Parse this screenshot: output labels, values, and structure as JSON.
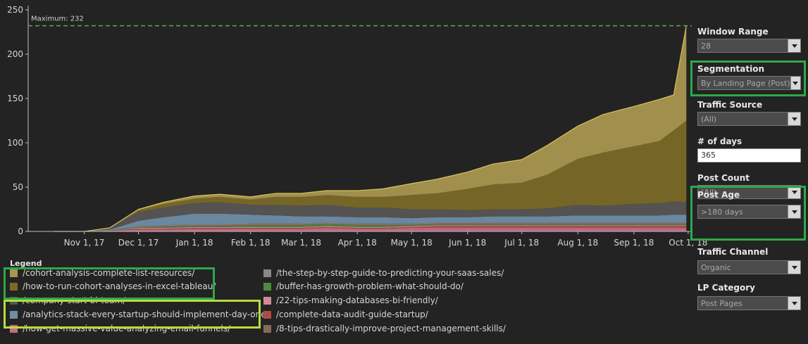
{
  "colors": {
    "background": "#232323",
    "reference_line": "#5da94e",
    "highlight_green": "#2ea84a",
    "highlight_lime": "#b7dc3c"
  },
  "chart_data": {
    "type": "area",
    "stacked": true,
    "title": "",
    "xlabel": "",
    "ylabel": "",
    "ylim": [
      0,
      250
    ],
    "xlim": [
      "2017-10-01",
      "2018-10-03"
    ],
    "yticks": [
      0,
      50,
      100,
      150,
      200,
      250
    ],
    "ytick_labels": [
      "0",
      "50",
      "100",
      "150",
      "200",
      "250"
    ],
    "xticks": [
      "2017-11-01",
      "2017-12-01",
      "2018-01-01",
      "2018-02-01",
      "2018-03-01",
      "2018-04-01",
      "2018-05-01",
      "2018-06-01",
      "2018-07-01",
      "2018-08-01",
      "2018-09-01",
      "2018-10-01"
    ],
    "xtick_labels": [
      "Nov 1, 17",
      "Dec 1, 17",
      "Jan 1, 18",
      "Feb 1, 18",
      "Mar 1, 18",
      "Apr 1, 18",
      "May 1, 18",
      "Jun 1, 18",
      "Jul 1, 18",
      "Aug 1, 18",
      "Sep 1, 18",
      "Oct 1, 18"
    ],
    "grid": false,
    "reference_line": {
      "value": 232,
      "label": "Maximum: 232"
    },
    "x": [
      "2017-10-15",
      "2017-11-01",
      "2017-11-15",
      "2017-12-01",
      "2017-12-15",
      "2018-01-01",
      "2018-01-15",
      "2018-02-01",
      "2018-02-15",
      "2018-03-01",
      "2018-03-15",
      "2018-04-01",
      "2018-04-15",
      "2018-05-01",
      "2018-05-15",
      "2018-06-01",
      "2018-06-15",
      "2018-07-01",
      "2018-07-15",
      "2018-08-01",
      "2018-08-15",
      "2018-09-01",
      "2018-09-15",
      "2018-09-23",
      "2018-09-30"
    ],
    "series": [
      {
        "name": "/how-get-massive-value-analyzing-email-funnels/",
        "color": "#c76a8a",
        "values": [
          0,
          0,
          1,
          2,
          2,
          3,
          3,
          3,
          3,
          3,
          4,
          3,
          3,
          4,
          4,
          4,
          4,
          4,
          4,
          4,
          4,
          4,
          4,
          4,
          4
        ]
      },
      {
        "name": "/complete-data-audit-guide-startup/",
        "color": "#b04a4a",
        "values": [
          0,
          0,
          0,
          1,
          1,
          1,
          1,
          1,
          1,
          1,
          1,
          1,
          1,
          1,
          2,
          2,
          2,
          2,
          2,
          2,
          2,
          2,
          2,
          2,
          2
        ]
      },
      {
        "name": "/22-tips-making-databases-bi-friendly/",
        "color": "#d08a96",
        "values": [
          0,
          0,
          0,
          1,
          1,
          1,
          1,
          1,
          1,
          1,
          1,
          1,
          1,
          1,
          1,
          1,
          1,
          1,
          1,
          1,
          1,
          1,
          1,
          1,
          1
        ]
      },
      {
        "name": "/buffer-has-growth-problem-what-should-do/",
        "color": "#4e8a3e",
        "values": [
          0,
          0,
          0,
          1,
          1,
          1,
          1,
          2,
          2,
          2,
          2,
          2,
          2,
          1,
          1,
          1,
          1,
          1,
          1,
          1,
          1,
          1,
          1,
          1,
          1
        ]
      },
      {
        "name": "/8-tips-drastically-improve-project-management-skills/",
        "color": "#8a6a56",
        "values": [
          0,
          0,
          0,
          0,
          1,
          1,
          1,
          1,
          1,
          1,
          1,
          1,
          1,
          1,
          1,
          1,
          1,
          1,
          1,
          1,
          1,
          1,
          1,
          1,
          1
        ]
      },
      {
        "name": "/the-step-by-step-guide-to-predicting-your-saas-sales/",
        "color": "#8e8585",
        "values": [
          0,
          0,
          0,
          1,
          1,
          1,
          1,
          1,
          1,
          1,
          1,
          1,
          1,
          1,
          1,
          1,
          1,
          1,
          1,
          1,
          1,
          1,
          1,
          1,
          1
        ]
      },
      {
        "name": "/analytics-stack-every-startup-should-implement-day-one/",
        "color": "#6f8ea6",
        "values": [
          0,
          0,
          1,
          6,
          9,
          12,
          12,
          10,
          9,
          8,
          7,
          7,
          7,
          6,
          6,
          6,
          7,
          7,
          7,
          8,
          8,
          8,
          8,
          9,
          9
        ]
      },
      {
        "name": "/company-start-bi-team/",
        "color": "#585555",
        "values": [
          0,
          0,
          2,
          10,
          11,
          12,
          13,
          11,
          12,
          12,
          13,
          11,
          11,
          10,
          9,
          8,
          8,
          8,
          9,
          12,
          11,
          13,
          14,
          15,
          14
        ]
      },
      {
        "name": "/how-to-run-cohort-analyses-in-excel-tableau/",
        "color": "#7a6a28",
        "values": [
          0,
          0,
          0,
          2,
          4,
          5,
          6,
          6,
          9,
          10,
          11,
          12,
          12,
          16,
          18,
          24,
          28,
          30,
          38,
          52,
          60,
          65,
          70,
          80,
          92
        ]
      },
      {
        "name": "/cohort-analysis-complete-list-resources/",
        "color": "#a89650",
        "values": [
          0,
          0,
          0,
          1,
          2,
          3,
          3,
          3,
          4,
          4,
          5,
          7,
          9,
          13,
          16,
          19,
          23,
          26,
          33,
          37,
          43,
          45,
          47,
          40,
          107
        ]
      }
    ]
  },
  "legend": {
    "title": "Legend",
    "items": [
      {
        "label": "/cohort-analysis-complete-list-resources/",
        "color": "#a89650"
      },
      {
        "label": "/how-to-run-cohort-analyses-in-excel-tableau/",
        "color": "#7a6a28"
      },
      {
        "label": "/company-start-bi-team/",
        "color": "#585555"
      },
      {
        "label": "/analytics-stack-every-startup-should-implement-day-one/",
        "color": "#6f8ea6"
      },
      {
        "label": "/how-get-massive-value-analyzing-email-funnels/",
        "color": "#c76a8a"
      },
      {
        "label": "/the-step-by-step-guide-to-predicting-your-saas-sales/",
        "color": "#8e8585"
      },
      {
        "label": "/buffer-has-growth-problem-what-should-do/",
        "color": "#4e8a3e"
      },
      {
        "label": "/22-tips-making-databases-bi-friendly/",
        "color": "#d08a96"
      },
      {
        "label": "/complete-data-audit-guide-startup/",
        "color": "#b04a4a"
      },
      {
        "label": "/8-tips-drastically-improve-project-management-skills/",
        "color": "#8a6a56"
      }
    ]
  },
  "controls": {
    "window_range": {
      "label": "Window Range",
      "value": "28"
    },
    "segmentation": {
      "label": "Segmentation",
      "value": "By Landing Page (Post)"
    },
    "traffic_source": {
      "label": "Traffic Source",
      "value": "(All)"
    },
    "num_days": {
      "label": "# of days",
      "value": "365"
    },
    "post_count": {
      "label": "Post Count",
      "value": "(All)"
    },
    "post_age": {
      "label": "Post Age",
      "value": ">180 days"
    },
    "traffic_channel": {
      "label": "Traffic Channel",
      "value": "Organic"
    },
    "lp_category": {
      "label": "LP Category",
      "value": "Post Pages"
    }
  }
}
